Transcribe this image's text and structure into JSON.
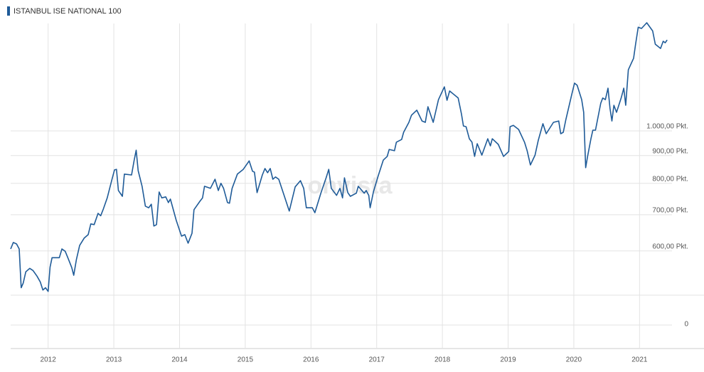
{
  "chart_data": {
    "type": "line",
    "title": "ISTANBUL ISE NATIONAL 100",
    "watermark": "onvista",
    "y_scale": "log",
    "grid": true,
    "xlim": [
      2011.43,
      2021.44
    ],
    "xticks": [
      2012,
      2013,
      2014,
      2015,
      2016,
      2017,
      2018,
      2019,
      2020,
      2021
    ],
    "ylim": [
      497,
      1618
    ],
    "yticks": [
      {
        "value": 600,
        "label": "600,00 Pkt."
      },
      {
        "value": 700,
        "label": "700,00 Pkt."
      },
      {
        "value": 800,
        "label": "800,00 Pkt."
      },
      {
        "value": 900,
        "label": "900,00 Pkt."
      },
      {
        "value": 1000,
        "label": "1.000,00 Pkt."
      }
    ],
    "lower_panel_yticks": [
      0
    ],
    "series": [
      {
        "name": "ISTANBUL ISE NATIONAL 100",
        "color": "#1f5b98",
        "x": [
          2011.43,
          2011.47,
          2011.52,
          2011.56,
          2011.59,
          2011.62,
          2011.66,
          2011.72,
          2011.77,
          2011.83,
          2011.88,
          2011.92,
          2011.96,
          2012.0,
          2012.03,
          2012.06,
          2012.17,
          2012.21,
          2012.26,
          2012.3,
          2012.36,
          2012.39,
          2012.43,
          2012.48,
          2012.55,
          2012.61,
          2012.65,
          2012.7,
          2012.76,
          2012.8,
          2012.84,
          2012.9,
          2012.97,
          2013.01,
          2013.04,
          2013.07,
          2013.13,
          2013.16,
          2013.27,
          2013.31,
          2013.34,
          2013.37,
          2013.43,
          2013.48,
          2013.53,
          2013.57,
          2013.61,
          2013.65,
          2013.69,
          2013.73,
          2013.79,
          2013.83,
          2013.86,
          2013.95,
          2014.03,
          2014.08,
          2014.13,
          2014.19,
          2014.22,
          2014.31,
          2014.35,
          2014.38,
          2014.47,
          2014.54,
          2014.59,
          2014.63,
          2014.67,
          2014.73,
          2014.76,
          2014.8,
          2014.88,
          2014.97,
          2015.06,
          2015.11,
          2015.14,
          2015.18,
          2015.26,
          2015.3,
          2015.34,
          2015.38,
          2015.42,
          2015.46,
          2015.51,
          2015.58,
          2015.67,
          2015.76,
          2015.84,
          2015.89,
          2015.93,
          2016.02,
          2016.06,
          2016.15,
          2016.23,
          2016.27,
          2016.31,
          2016.39,
          2016.44,
          2016.48,
          2016.51,
          2016.56,
          2016.6,
          2016.69,
          2016.72,
          2016.81,
          2016.84,
          2016.88,
          2016.9,
          2016.95,
          2017.02,
          2017.1,
          2017.16,
          2017.19,
          2017.27,
          2017.3,
          2017.38,
          2017.41,
          2017.49,
          2017.53,
          2017.61,
          2017.69,
          2017.74,
          2017.78,
          2017.86,
          2017.94,
          2018.03,
          2018.07,
          2018.11,
          2018.24,
          2018.29,
          2018.32,
          2018.36,
          2018.41,
          2018.45,
          2018.49,
          2018.53,
          2018.6,
          2018.69,
          2018.73,
          2018.76,
          2018.85,
          2018.93,
          2019.01,
          2019.03,
          2019.08,
          2019.16,
          2019.25,
          2019.29,
          2019.34,
          2019.41,
          2019.46,
          2019.53,
          2019.58,
          2019.69,
          2019.77,
          2019.8,
          2019.84,
          2019.88,
          2019.97,
          2020.01,
          2020.05,
          2020.12,
          2020.15,
          2020.18,
          2020.21,
          2020.26,
          2020.29,
          2020.33,
          2020.41,
          2020.44,
          2020.48,
          2020.52,
          2020.55,
          2020.58,
          2020.61,
          2020.65,
          2020.72,
          2020.76,
          2020.79,
          2020.83,
          2020.91,
          2020.94,
          2020.98,
          2021.03,
          2021.11,
          2021.2,
          2021.24,
          2021.32,
          2021.36,
          2021.39,
          2021.42
        ],
        "values": [
          605,
          622,
          618,
          605,
          513,
          523,
          549,
          557,
          552,
          539,
          526,
          508,
          513,
          505,
          560,
          583,
          583,
          605,
          599,
          583,
          559,
          541,
          578,
          614,
          634,
          643,
          673,
          671,
          704,
          697,
          717,
          752,
          812,
          847,
          849,
          776,
          757,
          832,
          829,
          883,
          921,
          844,
          790,
          726,
          721,
          732,
          667,
          671,
          771,
          752,
          755,
          737,
          748,
          683,
          639,
          643,
          620,
          647,
          715,
          741,
          752,
          790,
          783,
          814,
          776,
          800,
          783,
          737,
          735,
          783,
          832,
          849,
          880,
          842,
          839,
          769,
          829,
          852,
          837,
          852,
          814,
          822,
          814,
          767,
          711,
          788,
          809,
          783,
          721,
          721,
          706,
          767,
          819,
          849,
          783,
          760,
          783,
          752,
          819,
          769,
          757,
          767,
          790,
          767,
          776,
          760,
          721,
          771,
          824,
          883,
          897,
          924,
          919,
          953,
          964,
          994,
          1037,
          1069,
          1092,
          1043,
          1037,
          1108,
          1037,
          1142,
          1206,
          1139,
          1185,
          1150,
          1075,
          1021,
          1018,
          967,
          953,
          897,
          947,
          902,
          967,
          938,
          967,
          944,
          897,
          916,
          1018,
          1024,
          1006,
          953,
          919,
          865,
          902,
          961,
          1031,
          988,
          1037,
          1043,
          988,
          994,
          1050,
          1170,
          1225,
          1214,
          1142,
          1082,
          855,
          897,
          967,
          1003,
          1003,
          1125,
          1150,
          1142,
          1199,
          1101,
          1043,
          1115,
          1082,
          1150,
          1199,
          1115,
          1297,
          1362,
          1446,
          1554,
          1546,
          1584,
          1530,
          1446,
          1420,
          1464,
          1455,
          1472
        ]
      }
    ]
  }
}
